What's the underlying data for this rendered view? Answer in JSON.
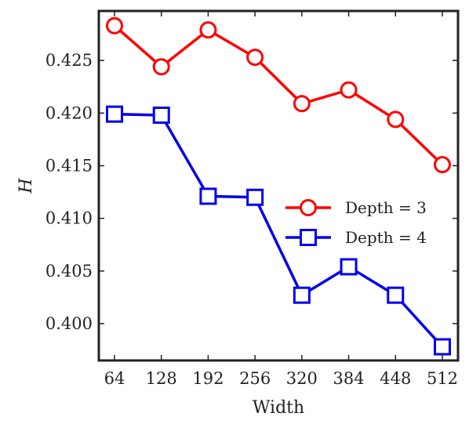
{
  "chart_data": {
    "type": "line",
    "title": "",
    "xlabel": "Width",
    "ylabel": "H",
    "x": [
      64,
      128,
      192,
      256,
      320,
      384,
      448,
      512
    ],
    "x_tick_labels": [
      "64",
      "128",
      "192",
      "256",
      "320",
      "384",
      "448",
      "512"
    ],
    "ylim": [
      0.3965,
      0.4297
    ],
    "y_ticks": [
      0.4,
      0.405,
      0.41,
      0.415,
      0.42,
      0.425
    ],
    "y_tick_labels": [
      "0.400",
      "0.405",
      "0.410",
      "0.415",
      "0.420",
      "0.425"
    ],
    "grid": false,
    "legend_position": "center-right",
    "series": [
      {
        "name": "Depth = 3",
        "marker": "circle",
        "color": "#ff0000",
        "values": [
          0.4283,
          0.4244,
          0.4279,
          0.4253,
          0.4209,
          0.4222,
          0.4194,
          0.4151
        ]
      },
      {
        "name": "Depth = 4",
        "marker": "square",
        "color": "#0000ee",
        "values": [
          0.4199,
          0.4198,
          0.4121,
          0.412,
          0.4027,
          0.4054,
          0.4027,
          0.3978
        ]
      }
    ]
  }
}
